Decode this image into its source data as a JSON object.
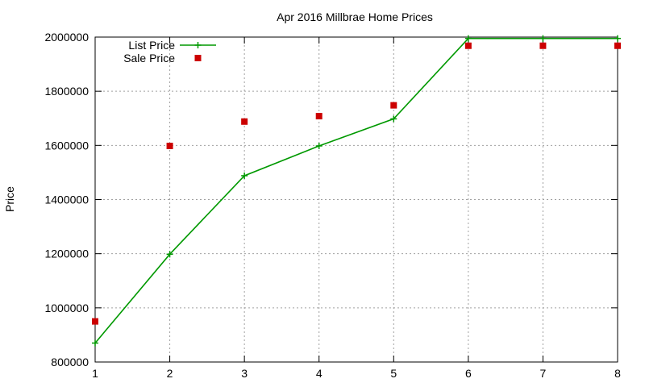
{
  "chart_data": {
    "type": "line",
    "title": "Apr 2016 Millbrae Home Prices",
    "xlabel": "",
    "ylabel": "Price",
    "x": [
      1,
      2,
      3,
      4,
      5,
      6,
      7,
      8
    ],
    "xlim": [
      1,
      8
    ],
    "ylim": [
      800000,
      2000000
    ],
    "xticks": [
      "1",
      "2",
      "3",
      "4",
      "5",
      "6",
      "7",
      "8"
    ],
    "yticks": [
      "800000",
      "1000000",
      "1200000",
      "1400000",
      "1600000",
      "1800000",
      "2000000"
    ],
    "grid": true,
    "legend_position": "top-left",
    "series": [
      {
        "name": "List Price",
        "style": "line+plus",
        "color": "#009900",
        "values": [
          870000,
          1198000,
          1488000,
          1598000,
          1698000,
          1995000,
          1995000,
          1995000
        ]
      },
      {
        "name": "Sale Price",
        "style": "square",
        "color": "#cc0000",
        "values": [
          950000,
          1598000,
          1688000,
          1708000,
          1748000,
          1968000,
          1968000,
          1968000
        ]
      }
    ]
  }
}
